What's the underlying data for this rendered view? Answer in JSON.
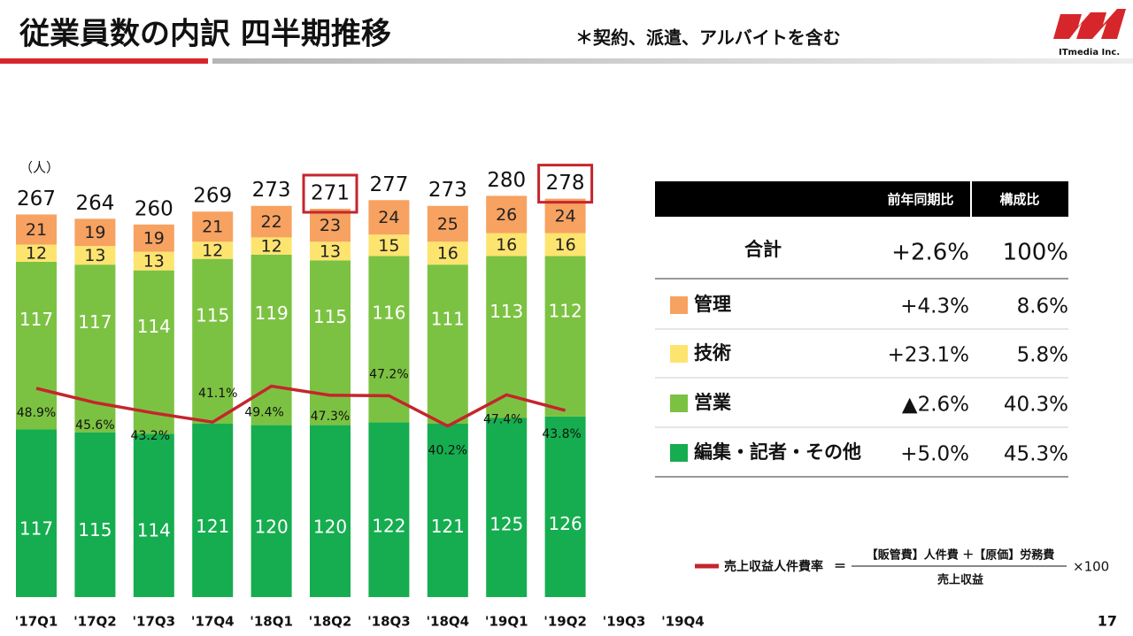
{
  "header": {
    "title": "従業員数の内訳 四半期推移",
    "note": "＊契約、派遣、アルバイトを含む",
    "logo": "ITmedia Inc."
  },
  "chart_data": {
    "type": "bar",
    "stacked": true,
    "unit_label": "（人）",
    "categories": [
      "'17Q1",
      "'17Q2",
      "'17Q3",
      "'17Q4",
      "'18Q1",
      "'18Q2",
      "'18Q3",
      "'18Q4",
      "'19Q1",
      "'19Q2",
      "'19Q3",
      "'19Q4"
    ],
    "series": [
      {
        "name": "編集・記者・その他",
        "color": "#15ad4f",
        "values": [
          117,
          115,
          114,
          121,
          120,
          120,
          122,
          121,
          125,
          126,
          null,
          null
        ]
      },
      {
        "name": "営業",
        "color": "#7cc242",
        "values": [
          117,
          117,
          114,
          115,
          119,
          115,
          116,
          111,
          113,
          112,
          null,
          null
        ]
      },
      {
        "name": "技術",
        "color": "#fde46f",
        "values": [
          12,
          13,
          13,
          12,
          12,
          13,
          15,
          16,
          16,
          16,
          null,
          null
        ]
      },
      {
        "name": "管理",
        "color": "#f7a261",
        "values": [
          21,
          19,
          19,
          21,
          22,
          23,
          24,
          25,
          26,
          24,
          null,
          null
        ]
      },
      {
        "name": "売上収益人件費率",
        "type": "line",
        "color": "#c4262c",
        "values": [
          48.9,
          45.6,
          43.2,
          41.1,
          49.4,
          47.3,
          47.2,
          40.2,
          47.4,
          43.8,
          null,
          null
        ],
        "value_labels": [
          "48.9%",
          "45.6%",
          "43.2%",
          "41.1%",
          "49.4%",
          "47.3%",
          "47.2%",
          "40.2%",
          "47.4%",
          "43.8%",
          null,
          null
        ]
      }
    ],
    "totals": [
      267,
      264,
      260,
      269,
      273,
      271,
      277,
      273,
      280,
      278,
      null,
      null
    ],
    "highlighted": [
      5,
      9
    ]
  },
  "table": {
    "headers": [
      "前年同期比",
      "構成比"
    ],
    "total": {
      "label": "合計",
      "yoy": "+2.6%",
      "share": "100%"
    },
    "rows": [
      {
        "yoy": "+4.3%",
        "share": "8.6%"
      },
      {
        "yoy": "+23.1%",
        "share": "5.8%"
      },
      {
        "yoy": "▲2.6%",
        "share": "40.3%"
      },
      {
        "yoy": "+5.0%",
        "share": "45.3%"
      }
    ]
  },
  "formula": {
    "equals": "＝",
    "numerator": "【販管費】人件費 ＋【原価】労務費",
    "denominator": "売上収益",
    "factor": "×100"
  },
  "page_number": "17"
}
